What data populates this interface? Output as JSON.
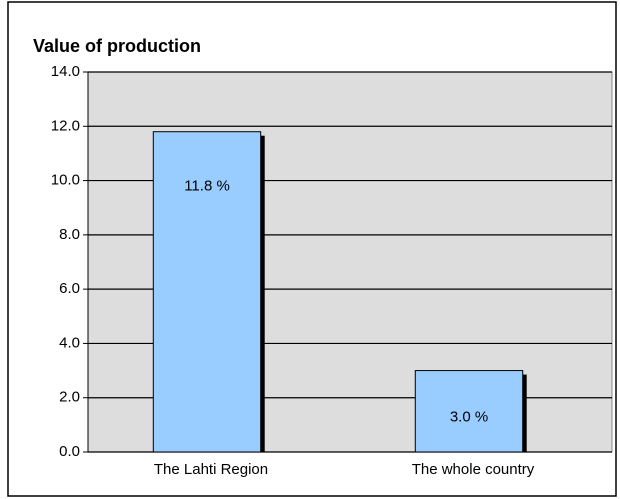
{
  "chart_data": {
    "type": "bar",
    "title": "Value of production",
    "categories": [
      "The Lahti Region",
      "The whole country"
    ],
    "values": [
      11.8,
      3.0
    ],
    "value_labels": [
      "11.8 %",
      "3.0 %"
    ],
    "color": "#99ccff",
    "ylim": [
      0,
      14
    ],
    "yticks": [
      {
        "value": 0,
        "label": "0.0"
      },
      {
        "value": 2,
        "label": "2.0"
      },
      {
        "value": 4,
        "label": "4.0"
      },
      {
        "value": 6,
        "label": "6.0"
      },
      {
        "value": 8,
        "label": "8.0"
      },
      {
        "value": 10,
        "label": "10.0"
      },
      {
        "value": 12,
        "label": "12.0"
      },
      {
        "value": 14,
        "label": "14.0"
      }
    ],
    "grid": true
  }
}
